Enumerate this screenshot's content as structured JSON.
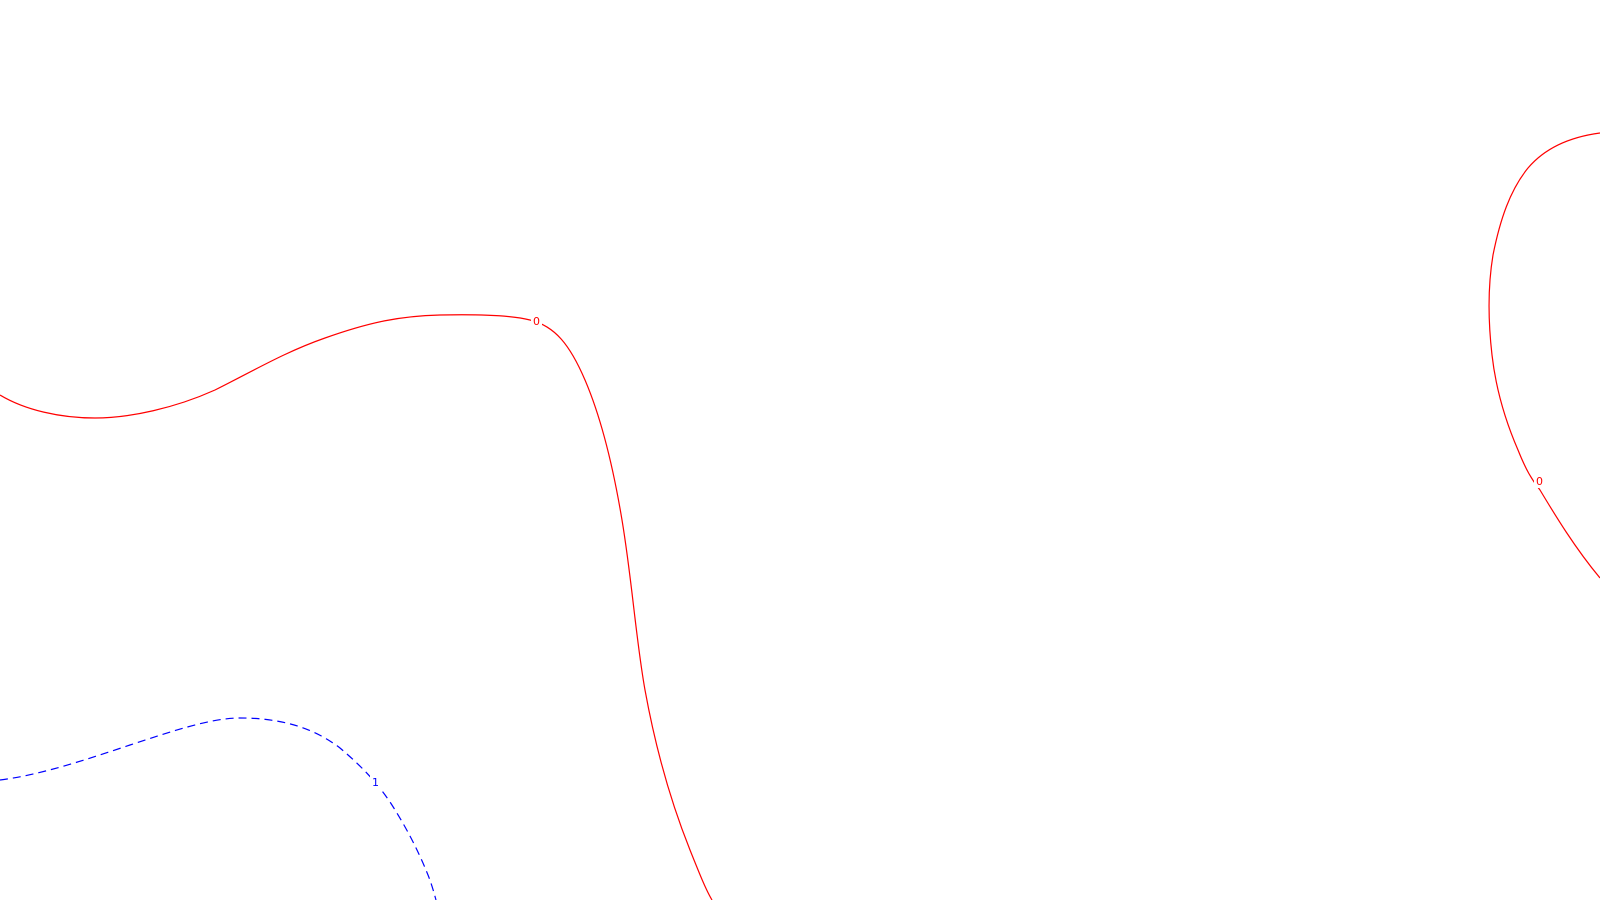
{
  "contours": [
    {
      "id": "zero-contour-west",
      "level_label": "0",
      "color": "#ff0000",
      "style": "solid"
    },
    {
      "id": "zero-contour-east",
      "level_label": "0",
      "color": "#ff0000",
      "style": "solid"
    },
    {
      "id": "one-contour-southwest",
      "level_label": "1",
      "color": "#0000ff",
      "style": "dashed"
    }
  ]
}
